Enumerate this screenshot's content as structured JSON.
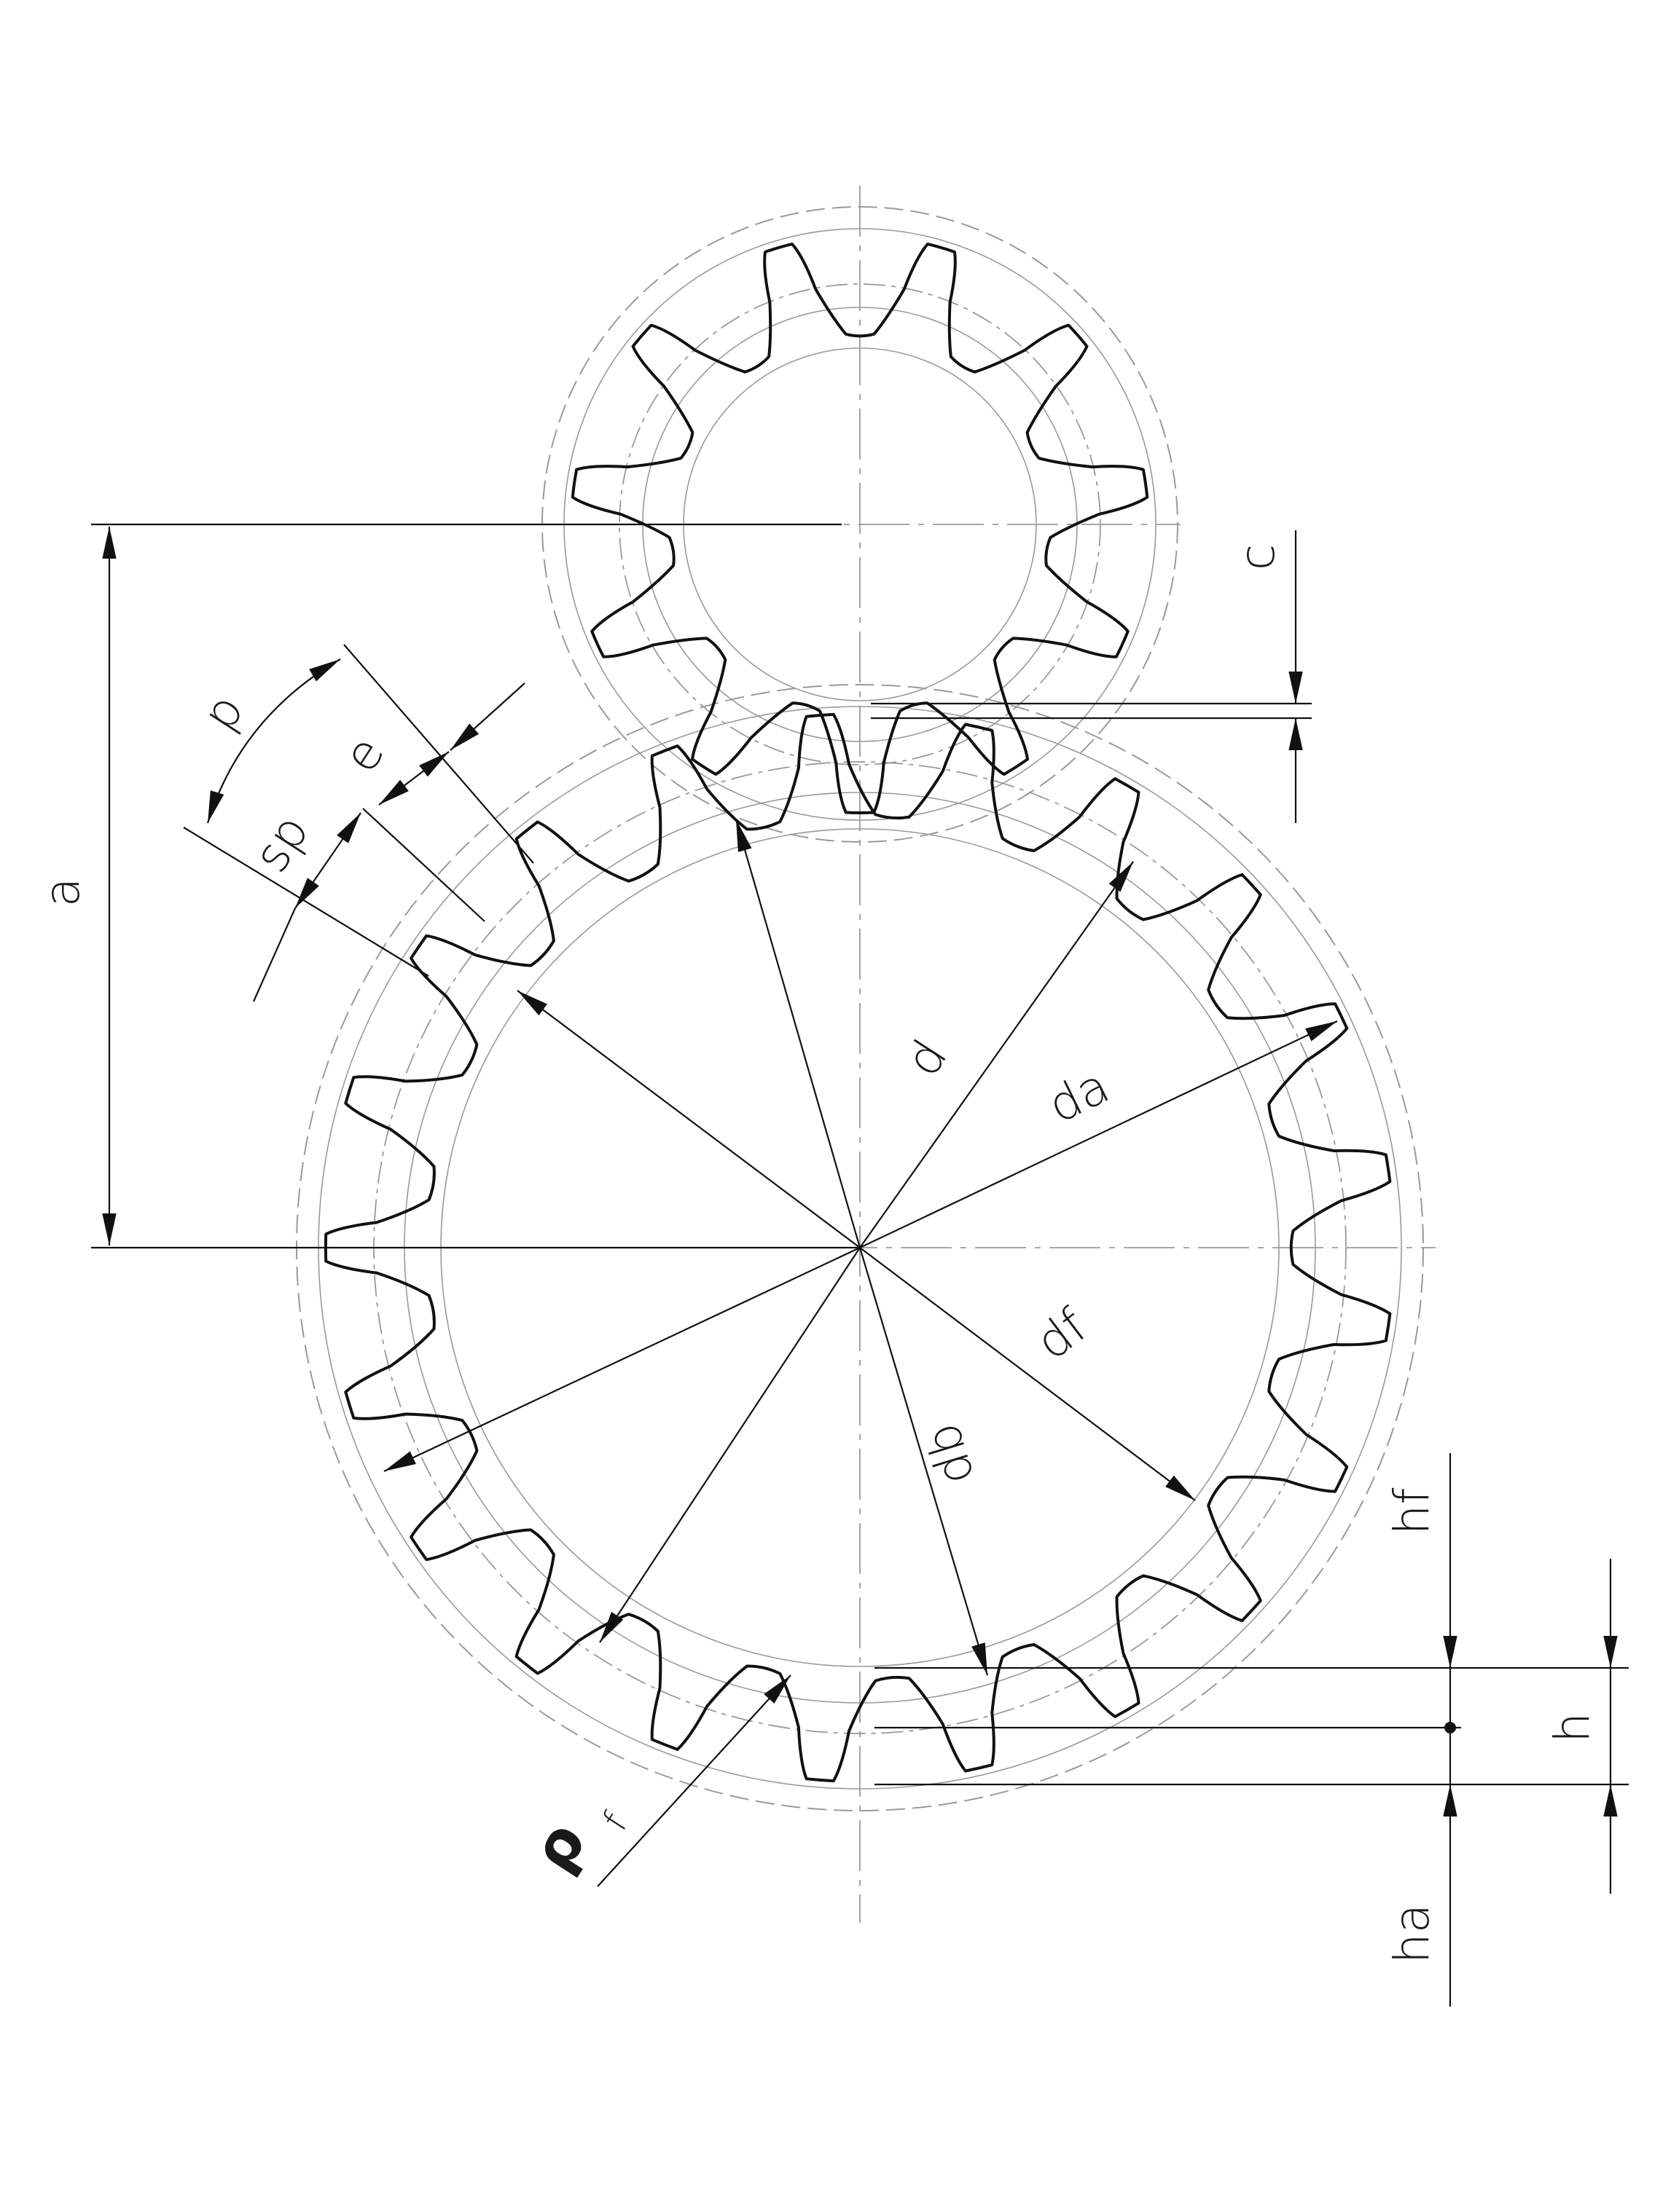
{
  "diagram": {
    "labels": {
      "a": "a",
      "c": "c",
      "p": "p",
      "e": "e",
      "sp": "sp",
      "d": "d",
      "da": "da",
      "df": "df",
      "db": "db",
      "hf": "hf",
      "h": "h",
      "ha": "ha",
      "rho": "ρ",
      "rho_sub": "f"
    },
    "gears": {
      "large": {
        "teeth": 21
      },
      "small": {
        "teeth": 11
      }
    },
    "colors": {
      "outline": "#111111",
      "dimension": "#111111",
      "construction": "#9a9a9a",
      "centerline": "#9a9a9a"
    }
  }
}
